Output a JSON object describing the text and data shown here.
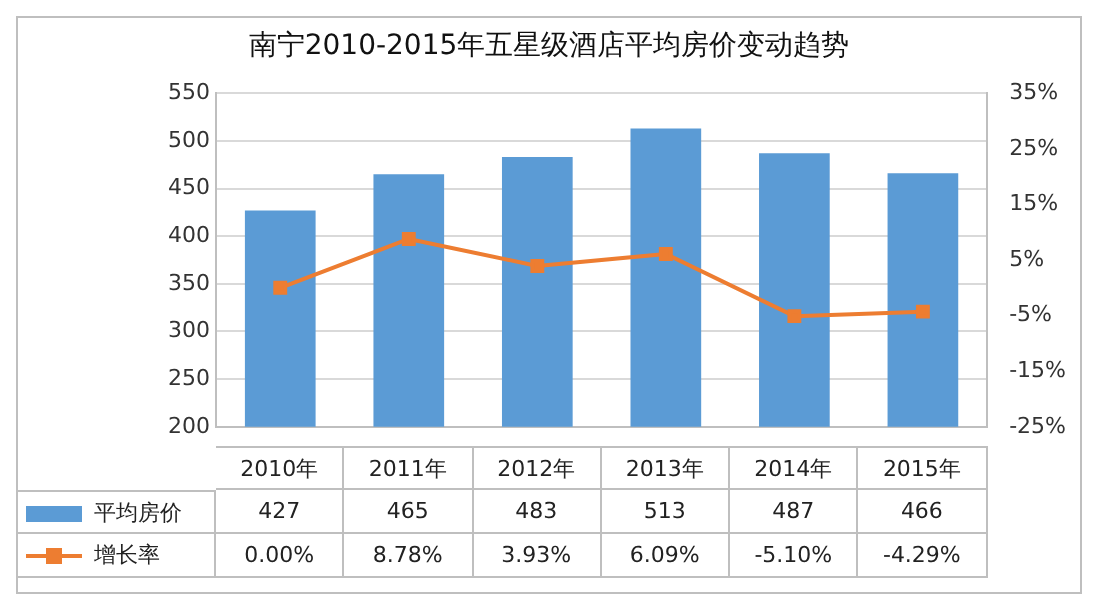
{
  "chart_data": {
    "type": "bar",
    "title": "南宁2010-2015年五星级酒店平均房价变动趋势",
    "categories": [
      "2010年",
      "2011年",
      "2012年",
      "2013年",
      "2014年",
      "2015年"
    ],
    "series": [
      {
        "name": "平均房价",
        "color": "#5b9bd5",
        "values": [
          427,
          465,
          483,
          513,
          487,
          466
        ],
        "value_labels": [
          "427",
          "465",
          "483",
          "513",
          "487",
          "466"
        ]
      },
      {
        "name": "增长率",
        "type": "line",
        "axis": "y2",
        "color": "#ed7d31",
        "values": [
          0,
          8.78,
          3.93,
          6.09,
          -5.1,
          -4.29
        ],
        "value_labels": [
          "0.00%",
          "8.78%",
          "3.93%",
          "6.09%",
          "-5.10%",
          "-4.29%"
        ]
      }
    ],
    "ylim": [
      200,
      550
    ],
    "yticks": [
      200,
      250,
      300,
      350,
      400,
      450,
      500,
      550
    ],
    "y2lim": [
      -25,
      35
    ],
    "y2ticks": [
      {
        "value": -25,
        "label": "-25%"
      },
      {
        "value": -15,
        "label": "-15%"
      },
      {
        "value": -5,
        "label": "-5%"
      },
      {
        "value": 5,
        "label": "5%"
      },
      {
        "value": 15,
        "label": "15%"
      },
      {
        "value": 25,
        "label": "25%"
      },
      {
        "value": 35,
        "label": "35%"
      }
    ],
    "grid": "y",
    "legend": "bottom",
    "marker": "square",
    "line_style": "solid"
  }
}
